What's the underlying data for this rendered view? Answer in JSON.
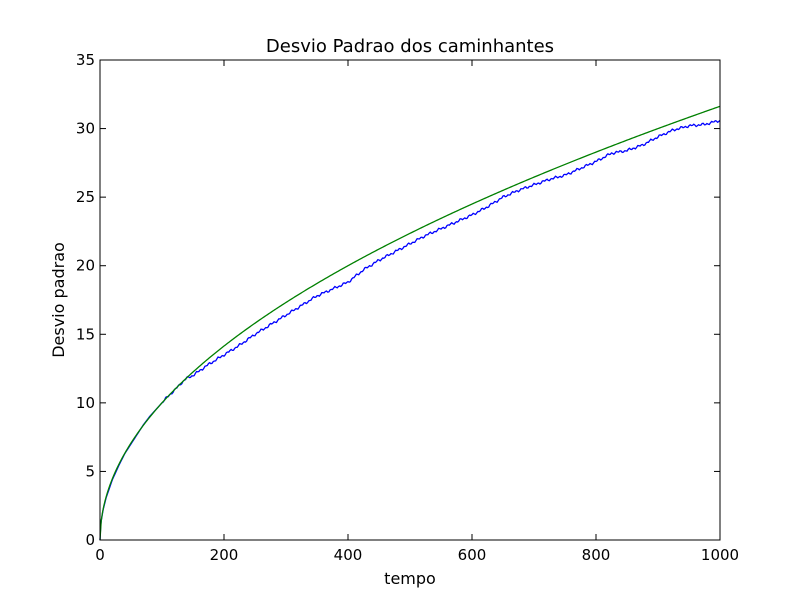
{
  "chart_data": {
    "type": "line",
    "title": "Desvio Padrao dos caminhantes",
    "xlabel": "tempo",
    "ylabel": "Desvio padrao",
    "xlim": [
      0,
      1000
    ],
    "ylim": [
      0,
      35
    ],
    "xticks": [
      0,
      200,
      400,
      600,
      800,
      1000
    ],
    "yticks": [
      0,
      5,
      10,
      15,
      20,
      25,
      30,
      35
    ],
    "grid": false,
    "legend": "none",
    "series": [
      {
        "color": "#0000ff",
        "x": [
          0,
          1,
          2,
          5,
          10,
          20,
          30,
          40,
          50,
          60,
          70,
          80,
          90,
          100,
          110,
          120,
          130,
          140,
          150,
          175,
          200,
          225,
          250,
          275,
          300,
          325,
          350,
          375,
          400,
          425,
          450,
          475,
          500,
          525,
          550,
          575,
          600,
          625,
          650,
          675,
          700,
          725,
          750,
          775,
          800,
          825,
          850,
          875,
          900,
          925,
          950,
          975,
          1000
        ],
        "y": [
          0.0,
          1.0,
          1.4,
          2.2,
          3.1,
          4.4,
          5.4,
          6.3,
          7.0,
          7.7,
          8.4,
          9.0,
          9.5,
          10.0,
          10.5,
          10.9,
          11.4,
          11.8,
          12.0,
          12.8,
          13.5,
          14.2,
          15.0,
          15.7,
          16.4,
          17.1,
          17.8,
          18.3,
          18.8,
          19.7,
          20.4,
          21.0,
          21.6,
          22.2,
          22.7,
          23.2,
          23.7,
          24.3,
          25.0,
          25.5,
          25.9,
          26.3,
          26.6,
          27.1,
          27.6,
          28.2,
          28.4,
          28.8,
          29.4,
          29.9,
          30.2,
          30.3,
          30.6
        ]
      },
      {
        "color": "#008000",
        "function": "sqrt",
        "x": [
          0,
          1,
          2,
          5,
          10,
          20,
          30,
          40,
          50,
          60,
          70,
          80,
          90,
          100,
          125,
          150,
          175,
          200,
          250,
          300,
          350,
          400,
          450,
          500,
          550,
          600,
          650,
          700,
          750,
          800,
          850,
          900,
          950,
          1000
        ],
        "y": [
          0.0,
          1.0,
          1.41,
          2.24,
          3.16,
          4.47,
          5.48,
          6.32,
          7.07,
          7.75,
          8.37,
          8.94,
          9.49,
          10.0,
          11.18,
          12.25,
          13.23,
          14.14,
          15.81,
          17.32,
          18.71,
          20.0,
          21.21,
          22.36,
          23.45,
          24.49,
          25.5,
          26.46,
          27.39,
          28.28,
          29.15,
          30.0,
          30.82,
          31.62
        ]
      }
    ]
  }
}
